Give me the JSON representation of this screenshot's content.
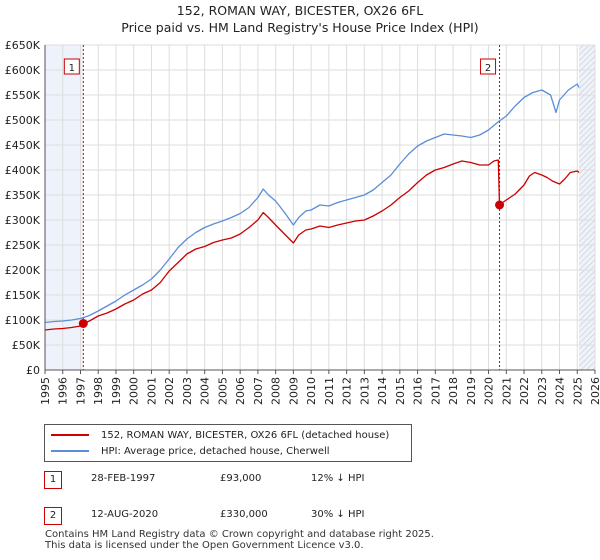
{
  "title_line1": "152, ROMAN WAY, BICESTER, OX26 6FL",
  "title_line2": "Price paid vs. HM Land Registry's House Price Index (HPI)",
  "colors": {
    "property": "#cc0000",
    "hpi": "#5b8ed6",
    "grid": "#dddddd",
    "plot_bg": "#ffffff",
    "shade": "#eef3fb",
    "marker_line": "#cc0000"
  },
  "legend": {
    "property_label": "152, ROMAN WAY, BICESTER, OX26 6FL (detached house)",
    "hpi_label": "HPI: Average price, detached house, Cherwell"
  },
  "sales": [
    {
      "number": "1",
      "date": "28-FEB-1997",
      "price": "£93,000",
      "hpi_delta": "12% ↓ HPI"
    },
    {
      "number": "2",
      "date": "12-AUG-2020",
      "price": "£330,000",
      "hpi_delta": "30% ↓ HPI"
    }
  ],
  "footer_line1": "Contains HM Land Registry data © Crown copyright and database right 2025.",
  "footer_line2": "This data is licensed under the Open Government Licence v3.0.",
  "chart_data": {
    "type": "line",
    "title": "152, ROMAN WAY, BICESTER, OX26 6FL",
    "subtitle": "Price paid vs. HM Land Registry's House Price Index (HPI)",
    "xlim": [
      1995,
      2026
    ],
    "ylim": [
      0,
      650000
    ],
    "x_ticks": [
      1995,
      1996,
      1997,
      1998,
      1999,
      2000,
      2001,
      2002,
      2003,
      2004,
      2005,
      2006,
      2007,
      2008,
      2009,
      2010,
      2011,
      2012,
      2013,
      2014,
      2015,
      2016,
      2017,
      2018,
      2019,
      2020,
      2021,
      2022,
      2023,
      2024,
      2025,
      2026
    ],
    "y_ticks": [
      {
        "value": 0,
        "label": "£0"
      },
      {
        "value": 50000,
        "label": "£50K"
      },
      {
        "value": 100000,
        "label": "£100K"
      },
      {
        "value": 150000,
        "label": "£150K"
      },
      {
        "value": 200000,
        "label": "£200K"
      },
      {
        "value": 250000,
        "label": "£250K"
      },
      {
        "value": 300000,
        "label": "£300K"
      },
      {
        "value": 350000,
        "label": "£350K"
      },
      {
        "value": 400000,
        "label": "£400K"
      },
      {
        "value": 450000,
        "label": "£450K"
      },
      {
        "value": 500000,
        "label": "£500K"
      },
      {
        "value": 550000,
        "label": "£550K"
      },
      {
        "value": 600000,
        "label": "£600K"
      },
      {
        "value": 650000,
        "label": "£650K"
      }
    ],
    "grid": true,
    "shaded_regions": [
      [
        1995,
        1997.16
      ],
      [
        2025.1,
        2026
      ]
    ],
    "hatched_region": [
      2025.1,
      2026
    ],
    "annotations": [
      {
        "label": "1",
        "x": 1997.16,
        "y": 93000
      },
      {
        "label": "2",
        "x": 2020.62,
        "y": 330000
      }
    ],
    "series": [
      {
        "name": "152, ROMAN WAY, BICESTER, OX26 6FL (detached house)",
        "color": "#cc0000",
        "x": [
          1995.0,
          1995.5,
          1996.0,
          1996.5,
          1997.0,
          1997.16,
          1997.5,
          1998.0,
          1998.5,
          1999.0,
          1999.5,
          2000.0,
          2000.5,
          2001.0,
          2001.5,
          2002.0,
          2002.5,
          2003.0,
          2003.5,
          2004.0,
          2004.5,
          2005.0,
          2005.5,
          2006.0,
          2006.5,
          2007.0,
          2007.3,
          2007.6,
          2008.0,
          2008.5,
          2009.0,
          2009.3,
          2009.7,
          2010.0,
          2010.5,
          2011.0,
          2011.5,
          2012.0,
          2012.5,
          2013.0,
          2013.5,
          2014.0,
          2014.5,
          2015.0,
          2015.5,
          2016.0,
          2016.5,
          2017.0,
          2017.5,
          2018.0,
          2018.5,
          2019.0,
          2019.5,
          2020.0,
          2020.3,
          2020.55,
          2020.62,
          2020.8,
          2021.0,
          2021.5,
          2022.0,
          2022.3,
          2022.6,
          2023.0,
          2023.3,
          2023.6,
          2024.0,
          2024.3,
          2024.6,
          2025.0,
          2025.1
        ],
        "y": [
          80000,
          82000,
          83000,
          85000,
          88000,
          93000,
          98000,
          108000,
          114000,
          122000,
          132000,
          140000,
          152000,
          160000,
          175000,
          198000,
          215000,
          232000,
          242000,
          247000,
          255000,
          260000,
          264000,
          272000,
          285000,
          300000,
          315000,
          305000,
          290000,
          272000,
          254000,
          270000,
          280000,
          282000,
          288000,
          285000,
          290000,
          294000,
          298000,
          300000,
          308000,
          318000,
          330000,
          345000,
          358000,
          375000,
          390000,
          400000,
          405000,
          412000,
          418000,
          415000,
          410000,
          410000,
          418000,
          420000,
          330000,
          335000,
          340000,
          352000,
          370000,
          388000,
          395000,
          390000,
          385000,
          378000,
          372000,
          382000,
          395000,
          398000,
          395000
        ]
      },
      {
        "name": "HPI: Average price, detached house, Cherwell",
        "color": "#5b8ed6",
        "x": [
          1995.0,
          1995.5,
          1996.0,
          1996.5,
          1997.0,
          1997.5,
          1998.0,
          1998.5,
          1999.0,
          1999.5,
          2000.0,
          2000.5,
          2001.0,
          2001.5,
          2002.0,
          2002.5,
          2003.0,
          2003.5,
          2004.0,
          2004.5,
          2005.0,
          2005.5,
          2006.0,
          2006.5,
          2007.0,
          2007.3,
          2007.6,
          2008.0,
          2008.5,
          2009.0,
          2009.3,
          2009.7,
          2010.0,
          2010.5,
          2011.0,
          2011.5,
          2012.0,
          2012.5,
          2013.0,
          2013.5,
          2014.0,
          2014.5,
          2015.0,
          2015.5,
          2016.0,
          2016.5,
          2017.0,
          2017.5,
          2018.0,
          2018.5,
          2019.0,
          2019.5,
          2020.0,
          2020.5,
          2021.0,
          2021.5,
          2022.0,
          2022.5,
          2023.0,
          2023.5,
          2023.8,
          2024.0,
          2024.5,
          2025.0,
          2025.1
        ],
        "y": [
          95000,
          97000,
          98000,
          100000,
          103000,
          109000,
          118000,
          128000,
          138000,
          150000,
          160000,
          170000,
          182000,
          200000,
          222000,
          245000,
          262000,
          275000,
          285000,
          292000,
          298000,
          305000,
          313000,
          325000,
          345000,
          362000,
          350000,
          338000,
          315000,
          290000,
          305000,
          318000,
          320000,
          330000,
          328000,
          335000,
          340000,
          345000,
          350000,
          360000,
          375000,
          390000,
          412000,
          432000,
          448000,
          458000,
          465000,
          472000,
          470000,
          468000,
          465000,
          470000,
          480000,
          495000,
          508000,
          528000,
          545000,
          555000,
          560000,
          550000,
          515000,
          540000,
          560000,
          572000,
          565000
        ]
      }
    ]
  }
}
